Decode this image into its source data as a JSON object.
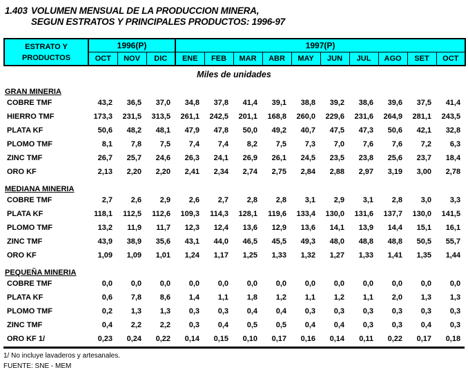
{
  "title": {
    "number": "1.403",
    "line1": "VOLUMEN MENSUAL DE LA PRODUCCION MINERA,",
    "line2": "SEGUN ESTRATOS Y PRINCIPALES PRODUCTOS: 1996-97"
  },
  "table": {
    "header": {
      "stub_line1": "ESTRATO Y",
      "stub_line2": "PRODUCTOS",
      "year_groups": [
        {
          "label": "1996(P)",
          "span": 3
        },
        {
          "label": "1997(P)",
          "span": 10
        }
      ],
      "months": [
        "OCT",
        "NOV",
        "DIC",
        "ENE",
        "FEB",
        "MAR",
        "ABR",
        "MAY",
        "JUN",
        "JUL",
        "AGO",
        "SET",
        "OCT"
      ]
    },
    "units_label": "Miles de unidades",
    "sections": [
      {
        "name": "GRAN MINERIA",
        "rows": [
          {
            "label": "COBRE TMF",
            "values": [
              "43,2",
              "36,5",
              "37,0",
              "34,8",
              "37,8",
              "41,4",
              "39,1",
              "38,8",
              "39,2",
              "38,6",
              "39,6",
              "37,5",
              "41,4"
            ]
          },
          {
            "label": "HIERRO TMF",
            "values": [
              "173,3",
              "231,5",
              "313,5",
              "261,1",
              "242,5",
              "201,1",
              "168,8",
              "260,0",
              "229,6",
              "231,6",
              "264,9",
              "281,1",
              "243,5"
            ]
          },
          {
            "label": "PLATA KF",
            "values": [
              "50,6",
              "48,2",
              "48,1",
              "47,9",
              "47,8",
              "50,0",
              "49,2",
              "40,7",
              "47,5",
              "47,3",
              "50,6",
              "42,1",
              "32,8"
            ]
          },
          {
            "label": "PLOMO TMF",
            "values": [
              "8,1",
              "7,8",
              "7,5",
              "7,4",
              "7,4",
              "8,2",
              "7,5",
              "7,3",
              "7,0",
              "7,6",
              "7,6",
              "7,2",
              "6,3"
            ]
          },
          {
            "label": "ZINC TMF",
            "values": [
              "26,7",
              "25,7",
              "24,6",
              "26,3",
              "24,1",
              "26,9",
              "26,1",
              "24,5",
              "23,5",
              "23,8",
              "25,6",
              "23,7",
              "18,4"
            ]
          },
          {
            "label": "ORO KF",
            "values": [
              "2,13",
              "2,20",
              "2,20",
              "2,41",
              "2,34",
              "2,74",
              "2,75",
              "2,84",
              "2,88",
              "2,97",
              "3,19",
              "3,00",
              "2,78"
            ]
          }
        ]
      },
      {
        "name": "MEDIANA MINERIA",
        "rows": [
          {
            "label": "COBRE TMF",
            "values": [
              "2,7",
              "2,6",
              "2,9",
              "2,6",
              "2,7",
              "2,8",
              "2,8",
              "3,1",
              "2,9",
              "3,1",
              "2,8",
              "3,0",
              "3,3"
            ]
          },
          {
            "label": "PLATA KF",
            "values": [
              "118,1",
              "112,5",
              "112,6",
              "109,3",
              "114,3",
              "128,1",
              "119,6",
              "133,4",
              "130,0",
              "131,6",
              "137,7",
              "130,0",
              "141,5"
            ]
          },
          {
            "label": "PLOMO TMF",
            "values": [
              "13,2",
              "11,9",
              "11,7",
              "12,3",
              "12,4",
              "13,6",
              "12,9",
              "13,6",
              "14,1",
              "13,9",
              "14,4",
              "15,1",
              "16,1"
            ]
          },
          {
            "label": "ZINC TMF",
            "values": [
              "43,9",
              "38,9",
              "35,6",
              "43,1",
              "44,0",
              "46,5",
              "45,5",
              "49,3",
              "48,0",
              "48,8",
              "48,8",
              "50,5",
              "55,7"
            ]
          },
          {
            "label": "ORO KF",
            "values": [
              "1,09",
              "1,09",
              "1,01",
              "1,24",
              "1,17",
              "1,25",
              "1,33",
              "1,32",
              "1,27",
              "1,33",
              "1,41",
              "1,35",
              "1,44"
            ]
          }
        ]
      },
      {
        "name": "PEQUEÑA MINERIA",
        "rows": [
          {
            "label": "COBRE TMF",
            "values": [
              "0,0",
              "0,0",
              "0,0",
              "0,0",
              "0,0",
              "0,0",
              "0,0",
              "0,0",
              "0,0",
              "0,0",
              "0,0",
              "0,0",
              "0,0"
            ]
          },
          {
            "label": "PLATA KF",
            "values": [
              "0,6",
              "7,8",
              "8,6",
              "1,4",
              "1,1",
              "1,8",
              "1,2",
              "1,1",
              "1,2",
              "1,1",
              "2,0",
              "1,3",
              "1,3"
            ]
          },
          {
            "label": "PLOMO TMF",
            "values": [
              "0,2",
              "1,3",
              "1,3",
              "0,3",
              "0,3",
              "0,4",
              "0,4",
              "0,3",
              "0,3",
              "0,3",
              "0,3",
              "0,3",
              "0,3"
            ]
          },
          {
            "label": "ZINC TMF",
            "values": [
              "0,4",
              "2,2",
              "2,2",
              "0,3",
              "0,4",
              "0,5",
              "0,5",
              "0,4",
              "0,4",
              "0,3",
              "0,3",
              "0,4",
              "0,3"
            ]
          },
          {
            "label": "ORO KF 1/",
            "values": [
              "0,23",
              "0,24",
              "0,22",
              "0,14",
              "0,15",
              "0,10",
              "0,17",
              "0,16",
              "0,14",
              "0,11",
              "0,22",
              "0,17",
              "0,18"
            ]
          }
        ]
      }
    ]
  },
  "footer": {
    "footnote": "1/ No incluye lavaderos y artesanales.",
    "source": "FUENTE: SNE - MEM"
  },
  "colors": {
    "header_bg": "#00FFFF",
    "border": "#000000",
    "text": "#000000",
    "page_bg": "#FFFFFF"
  }
}
